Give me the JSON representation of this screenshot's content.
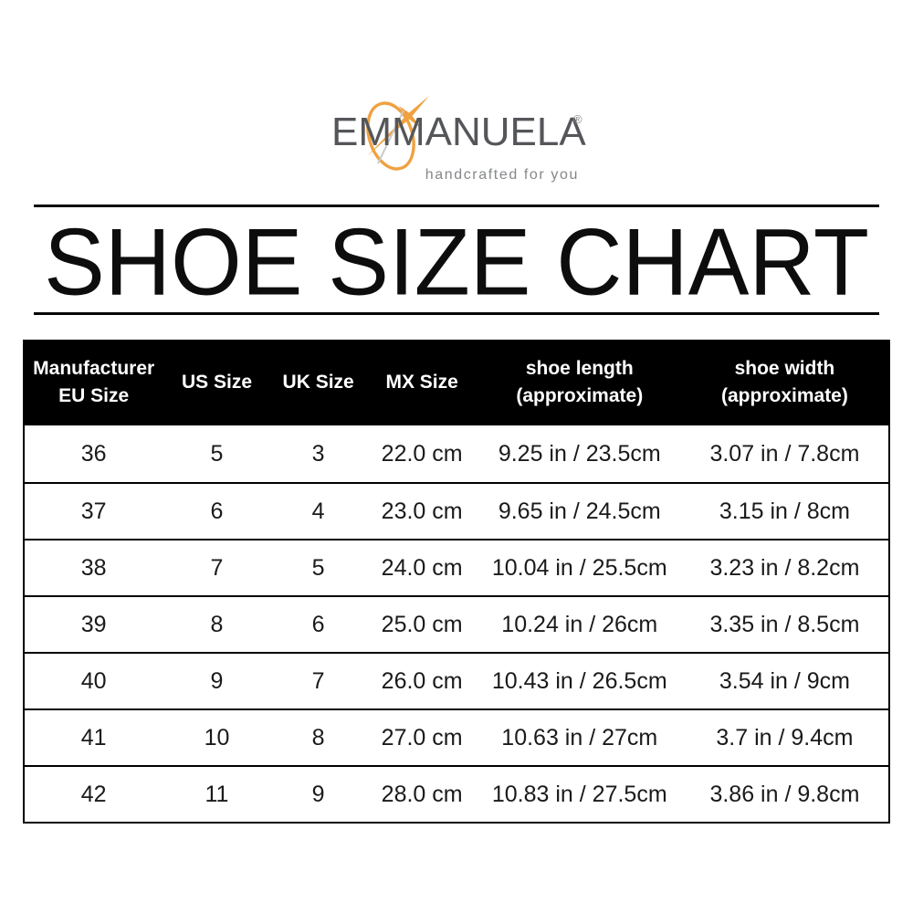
{
  "logo": {
    "brand": "EMMANUELA",
    "registered_mark": "®",
    "tagline": "handcrafted for you",
    "accent_color": "#F0A140",
    "brand_text_color": "#55565A",
    "tagline_color": "#85878A"
  },
  "title": "SHOE SIZE CHART",
  "chart_data": {
    "type": "table",
    "title": "SHOE SIZE CHART",
    "header_bg": "#000000",
    "header_text_color": "#FFFFFF",
    "body_text_color": "#1A1A1A",
    "columns": [
      {
        "line1": "Manufacturer",
        "line2": "EU Size"
      },
      {
        "line1": "US Size",
        "line2": ""
      },
      {
        "line1": "UK Size",
        "line2": ""
      },
      {
        "line1": "MX Size",
        "line2": ""
      },
      {
        "line1": "shoe length",
        "line2": "(approximate)"
      },
      {
        "line1": "shoe width",
        "line2": "(approximate)"
      }
    ],
    "rows": [
      [
        "36",
        "5",
        "3",
        "22.0 cm",
        "9.25 in / 23.5cm",
        "3.07 in / 7.8cm"
      ],
      [
        "37",
        "6",
        "4",
        "23.0 cm",
        "9.65 in / 24.5cm",
        "3.15 in / 8cm"
      ],
      [
        "38",
        "7",
        "5",
        "24.0 cm",
        "10.04 in / 25.5cm",
        "3.23 in / 8.2cm"
      ],
      [
        "39",
        "8",
        "6",
        "25.0 cm",
        "10.24 in / 26cm",
        "3.35 in / 8.5cm"
      ],
      [
        "40",
        "9",
        "7",
        "26.0 cm",
        "10.43 in / 26.5cm",
        "3.54 in / 9cm"
      ],
      [
        "41",
        "10",
        "8",
        "27.0 cm",
        "10.63 in / 27cm",
        "3.7 in / 9.4cm"
      ],
      [
        "42",
        "11",
        "9",
        "28.0 cm",
        "10.83 in / 27.5cm",
        "3.86 in / 9.8cm"
      ]
    ]
  }
}
